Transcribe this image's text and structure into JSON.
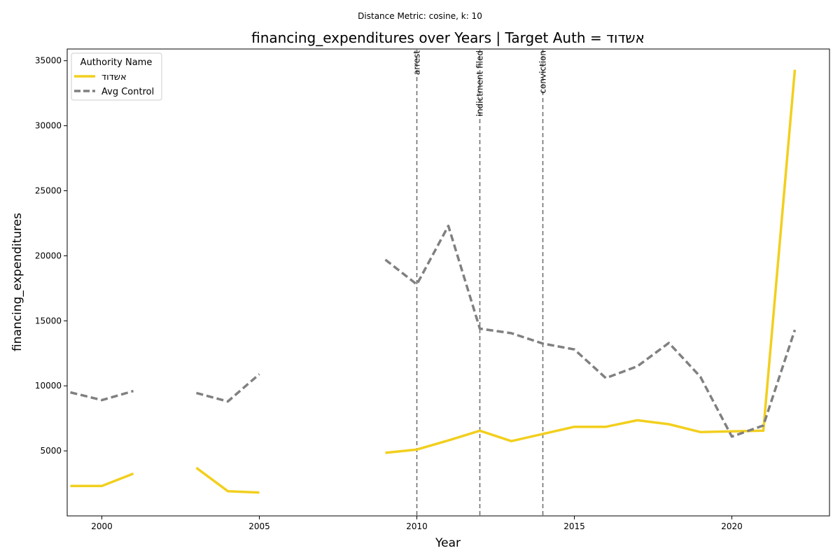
{
  "chart_data": {
    "type": "line",
    "suptitle": "Distance Metric: cosine, k: 10",
    "title": "financing_expenditures over Years | Target Auth = אשדוד",
    "xlabel": "Year",
    "ylabel": "financing_expenditures",
    "xlim": [
      1998.9,
      2023.1
    ],
    "ylim": [
      0,
      35900
    ],
    "xticks": [
      2000,
      2005,
      2010,
      2015,
      2020
    ],
    "yticks": [
      5000,
      10000,
      15000,
      20000,
      25000,
      30000,
      35000
    ],
    "legend": {
      "title": "Authority Name",
      "position": "top-left"
    },
    "series": [
      {
        "name": "אשדוד",
        "color": "#f2cf1e",
        "style": "solid",
        "points": [
          [
            1999,
            2300
          ],
          [
            2000,
            2300
          ],
          [
            2001,
            3250
          ],
          [
            2002,
            null
          ],
          [
            2003,
            3700
          ],
          [
            2004,
            1900
          ],
          [
            2005,
            1800
          ],
          [
            2006,
            null
          ],
          [
            2007,
            null
          ],
          [
            2008,
            null
          ],
          [
            2009,
            4850
          ],
          [
            2010,
            5100
          ],
          [
            2011,
            5800
          ],
          [
            2012,
            6550
          ],
          [
            2013,
            5750
          ],
          [
            2014,
            6300
          ],
          [
            2015,
            6850
          ],
          [
            2016,
            6850
          ],
          [
            2017,
            7350
          ],
          [
            2018,
            7050
          ],
          [
            2019,
            6450
          ],
          [
            2020,
            6500
          ],
          [
            2021,
            6550
          ],
          [
            2022,
            34300
          ]
        ]
      },
      {
        "name": "Avg Control",
        "color": "#808080",
        "style": "dashed",
        "points": [
          [
            1999,
            9500
          ],
          [
            2000,
            8900
          ],
          [
            2001,
            9600
          ],
          [
            2002,
            null
          ],
          [
            2003,
            9450
          ],
          [
            2004,
            8800
          ],
          [
            2005,
            10900
          ],
          [
            2006,
            null
          ],
          [
            2007,
            null
          ],
          [
            2008,
            null
          ],
          [
            2009,
            19700
          ],
          [
            2010,
            17800
          ],
          [
            2011,
            22300
          ],
          [
            2012,
            14400
          ],
          [
            2013,
            14050
          ],
          [
            2014,
            13250
          ],
          [
            2015,
            12800
          ],
          [
            2016,
            10600
          ],
          [
            2017,
            11500
          ],
          [
            2018,
            13300
          ],
          [
            2019,
            10700
          ],
          [
            2020,
            6100
          ],
          [
            2021,
            6950
          ],
          [
            2022,
            14300
          ]
        ]
      }
    ],
    "events": [
      {
        "year": 2010,
        "label": "arrest"
      },
      {
        "year": 2012,
        "label": "indictment filed"
      },
      {
        "year": 2014,
        "label": "conviction"
      }
    ]
  }
}
